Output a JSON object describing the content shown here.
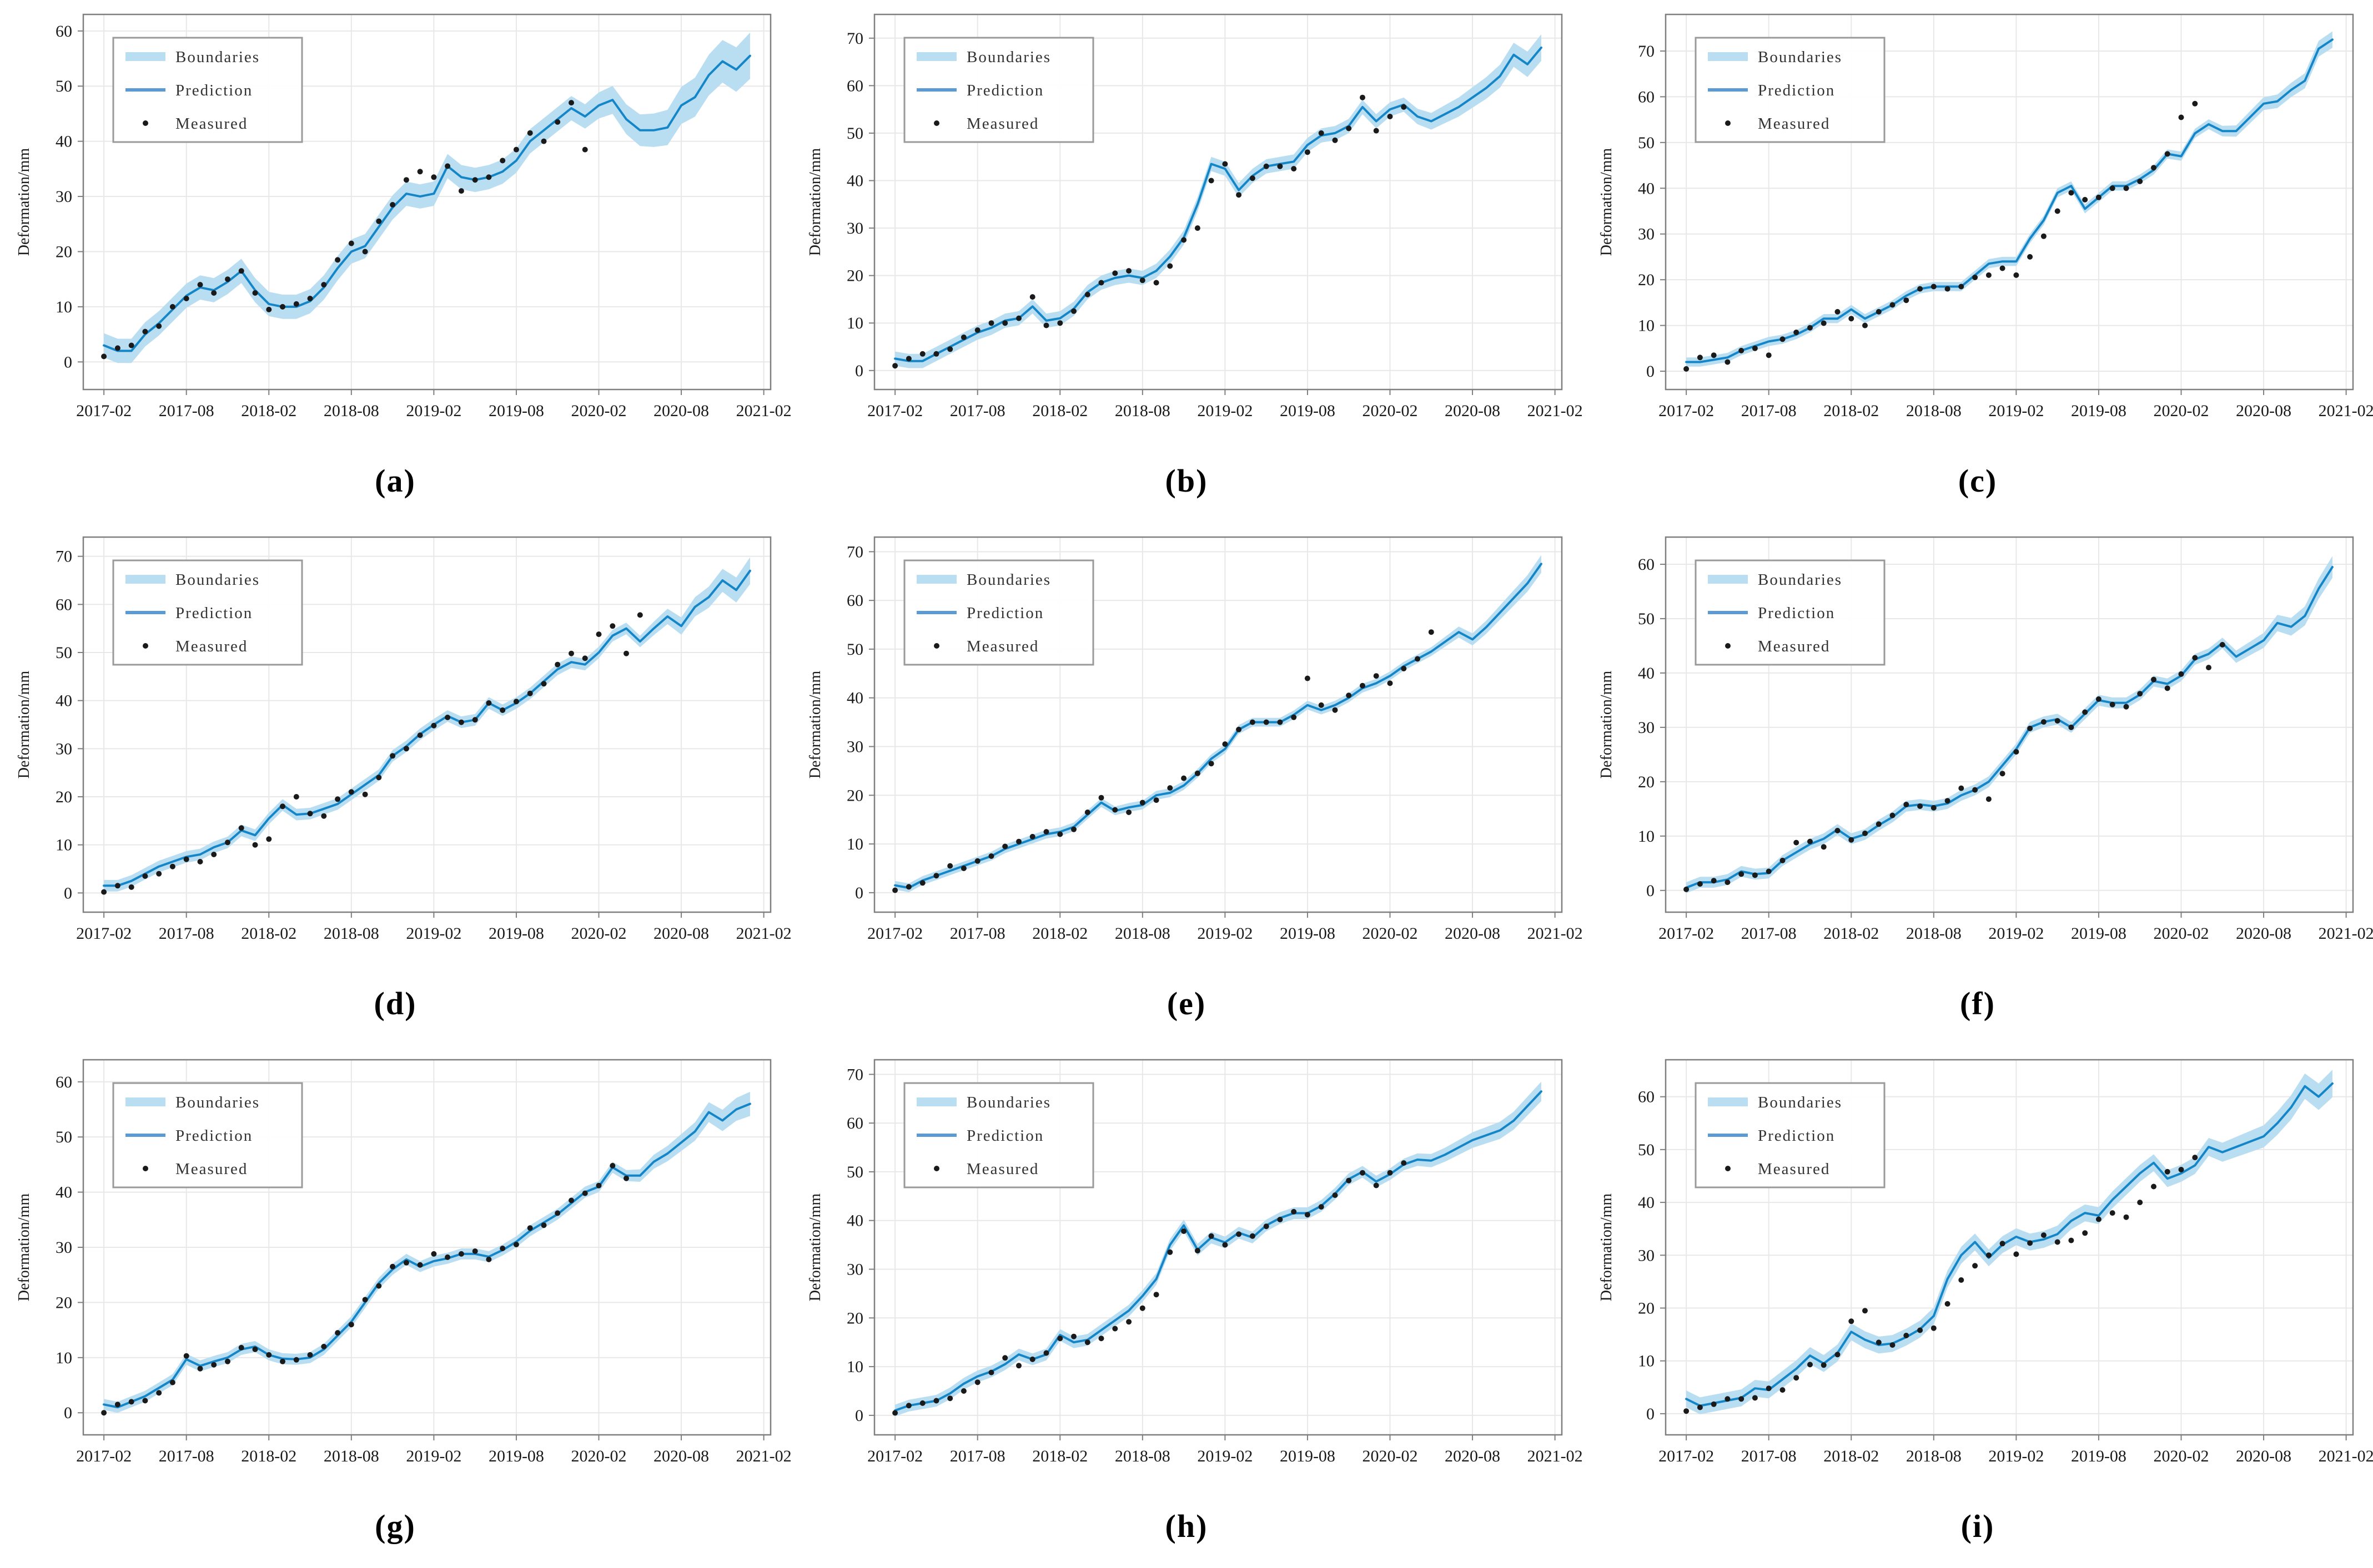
{
  "page": {
    "background": "#ffffff"
  },
  "colors": {
    "band": "#b9ddf1",
    "line": "#1486c8",
    "legend_line": "#5b9bd5",
    "measured": "#1a1a1a",
    "grid": "#e8e8e8",
    "spine": "#7f7f7f",
    "tick_text": "#1a1a1a"
  },
  "legend": {
    "items": [
      {
        "label": "Boundaries",
        "type": "band"
      },
      {
        "label": "Prediction",
        "type": "line"
      },
      {
        "label": "Measured",
        "type": "dot"
      }
    ]
  },
  "axis": {
    "ylabel": "Deformation/mm",
    "x_tick_labels": [
      "2017-02",
      "2017-08",
      "2018-02",
      "2018-08",
      "2019-02",
      "2019-08",
      "2020-02",
      "2020-08",
      "2021-02"
    ],
    "x_tick_months": [
      0,
      6,
      12,
      18,
      24,
      30,
      36,
      42,
      48
    ],
    "x_start_label": "2017-02",
    "x_end_label": "2021-02",
    "xlim_months": [
      -1.5,
      48.5
    ]
  },
  "chart_data": [
    {
      "id": "a",
      "caption": "(a)",
      "type": "line",
      "ylabel": "Deformation/mm",
      "ylim": [
        -5,
        63
      ],
      "yticks": [
        0,
        10,
        20,
        30,
        40,
        50,
        60
      ],
      "band": {
        "train": 2.2,
        "forecast": 4.2
      },
      "prediction": [
        3,
        2,
        2,
        5,
        7,
        9.5,
        12,
        13.5,
        13,
        14.5,
        16.5,
        13,
        10.5,
        10,
        10,
        11,
        13.5,
        17,
        20,
        21,
        24.5,
        28,
        30.5,
        30,
        30.5,
        35.5,
        33.5,
        33,
        33.5,
        34.5,
        36.5,
        40,
        42,
        44,
        46,
        44.5,
        46.5,
        47.5,
        44,
        42,
        42,
        42.5,
        46.5,
        48,
        52,
        54.5,
        53,
        55.5
      ],
      "measured": [
        1,
        2.5,
        3,
        5.5,
        6.5,
        10,
        11.5,
        14,
        12.5,
        15,
        16.5,
        12.5,
        9.5,
        10,
        10.5,
        11.5,
        14,
        18.5,
        21.5,
        20,
        25.5,
        28.5,
        33,
        34.5,
        33.5,
        35.5,
        31,
        33,
        33.5,
        36.5,
        38.5,
        41.5,
        40,
        43.5,
        47,
        38.5
      ]
    },
    {
      "id": "b",
      "caption": "(b)",
      "type": "line",
      "ylabel": "Deformation/mm",
      "ylim": [
        -4,
        75
      ],
      "yticks": [
        0,
        10,
        20,
        30,
        40,
        50,
        60,
        70
      ],
      "band": {
        "train": 1.5,
        "forecast": 2.8
      },
      "prediction": [
        2.5,
        2,
        2,
        3.5,
        5,
        6.5,
        8,
        9,
        10.5,
        11,
        13.5,
        10.5,
        11,
        13,
        16.5,
        18.5,
        19.5,
        20,
        19.5,
        21,
        24,
        28,
        35,
        43.5,
        42.5,
        38,
        41,
        43,
        43.5,
        44,
        47.5,
        49.5,
        50,
        51.5,
        55.5,
        52.5,
        55,
        56,
        53.5,
        52.5,
        54,
        55.5,
        57.5,
        59.5,
        62,
        66.5,
        64.5,
        68
      ],
      "measured": [
        1,
        2.5,
        3.5,
        3.5,
        4.5,
        7,
        8.5,
        10,
        10,
        11,
        15.5,
        9.5,
        10,
        12.5,
        16,
        18.5,
        20.5,
        21,
        19,
        18.5,
        22,
        27.5,
        30,
        40,
        43.5,
        37,
        40.5,
        43,
        43,
        42.5,
        46,
        50,
        48.5,
        51,
        57.5,
        50.5,
        53.5,
        55.5
      ]
    },
    {
      "id": "c",
      "caption": "(c)",
      "type": "line",
      "ylabel": "Deformation/mm",
      "ylim": [
        -4,
        78
      ],
      "yticks": [
        0,
        10,
        20,
        30,
        40,
        50,
        60,
        70
      ],
      "band": {
        "train": 1.0,
        "forecast": 1.8
      },
      "prediction": [
        2,
        2,
        2.5,
        3,
        4.5,
        5.5,
        6.5,
        7,
        8,
        9.5,
        11.5,
        11.5,
        13.5,
        11.5,
        13,
        14.5,
        16.5,
        18,
        18.5,
        18.5,
        18.5,
        21,
        23.5,
        24,
        24,
        29,
        33,
        39,
        40.5,
        35.5,
        38,
        40.5,
        40.5,
        42,
        44,
        47.5,
        47,
        52,
        54,
        52.5,
        52.5,
        55.5,
        58.5,
        59,
        61.5,
        63.5,
        70.5,
        72.5
      ],
      "measured": [
        0.5,
        3,
        3.5,
        2,
        4.5,
        5,
        3.5,
        7,
        8.5,
        9.5,
        10.5,
        13,
        11.5,
        10,
        13,
        14.5,
        15.5,
        18,
        18.5,
        18,
        18.5,
        20.5,
        21,
        22.5,
        21,
        25,
        29.5,
        35,
        39,
        37.5,
        38,
        40,
        40,
        41.5,
        44.5,
        47.5,
        55.5,
        58.5
      ]
    },
    {
      "id": "d",
      "caption": "(d)",
      "type": "line",
      "ylabel": "Deformation/mm",
      "ylim": [
        -4,
        74
      ],
      "yticks": [
        0,
        10,
        20,
        30,
        40,
        50,
        60,
        70
      ],
      "band": {
        "train": 1.2,
        "forecast": 2.8
      },
      "prediction": [
        1.5,
        1.5,
        2.5,
        4,
        5.5,
        6.5,
        7.5,
        8,
        9.5,
        10.5,
        13,
        12,
        15.5,
        18.3,
        16.3,
        16.5,
        17.5,
        18.5,
        20.5,
        22.5,
        24.5,
        28.5,
        30.5,
        33,
        35,
        36.8,
        35.5,
        36,
        39.5,
        38,
        39.5,
        41.5,
        44,
        46.5,
        48,
        47.5,
        50,
        53.5,
        55,
        52.3,
        55,
        57.5,
        55.5,
        59.5,
        61.5,
        65,
        63,
        67
      ],
      "measured": [
        0.2,
        1.5,
        1.2,
        3.5,
        4,
        5.5,
        7,
        6.5,
        8,
        10.5,
        13.5,
        10,
        11.2,
        18,
        20,
        16.5,
        16,
        19.5,
        21,
        20.5,
        24,
        28.5,
        30,
        32.8,
        34.8,
        36.5,
        35.5,
        36,
        39.5,
        38,
        39.8,
        41.5,
        43.5,
        47.5,
        49.8,
        48.8,
        53.8,
        55.5,
        49.8,
        57.8
      ]
    },
    {
      "id": "e",
      "caption": "(e)",
      "type": "line",
      "ylabel": "Deformation/mm",
      "ylim": [
        -4,
        73
      ],
      "yticks": [
        0,
        10,
        20,
        30,
        40,
        50,
        60,
        70
      ],
      "band": {
        "train": 0.9,
        "forecast": 1.8
      },
      "prediction": [
        1.5,
        1,
        2.5,
        3.5,
        4.5,
        5.5,
        6.5,
        7.5,
        9,
        10,
        11,
        12,
        12.5,
        13.5,
        16,
        18.5,
        16.8,
        17.5,
        18,
        20,
        20.5,
        22,
        24.5,
        27.5,
        29.5,
        33.5,
        35,
        35,
        35,
        36.5,
        38.5,
        37.5,
        38.5,
        40,
        42,
        43,
        44.5,
        46.5,
        48,
        49.5,
        51.5,
        53.5,
        52,
        54.5,
        57.5,
        60.5,
        63.5,
        67.5
      ],
      "measured": [
        0.5,
        1.2,
        2,
        3.5,
        5.5,
        5,
        6.5,
        7.5,
        9.5,
        10.5,
        11.5,
        12.5,
        12,
        13,
        16.5,
        19.5,
        17,
        16.5,
        18.5,
        19,
        21.5,
        23.5,
        24.5,
        26.5,
        30.5,
        33.5,
        35,
        35,
        35,
        36,
        44,
        38.5,
        37.5,
        40.5,
        42.5,
        44.5,
        43,
        46,
        48,
        53.5
      ]
    },
    {
      "id": "f",
      "caption": "(f)",
      "type": "line",
      "ylabel": "Deformation/mm",
      "ylim": [
        -4,
        65
      ],
      "yticks": [
        0,
        10,
        20,
        30,
        40,
        50,
        60
      ],
      "band": {
        "train": 1.0,
        "forecast": 2.0
      },
      "prediction": [
        0.5,
        1.5,
        1.5,
        2,
        3.5,
        3,
        3.2,
        5.5,
        7,
        8.5,
        9.5,
        11.2,
        9.5,
        10.3,
        12,
        13.5,
        15.5,
        15.8,
        15.5,
        16,
        17.5,
        18.5,
        20,
        23,
        26,
        30,
        31,
        31.5,
        30,
        32.5,
        35,
        34.5,
        34.5,
        36,
        38.5,
        38,
        39.5,
        42.5,
        43.5,
        45.5,
        43,
        44.5,
        46,
        49.2,
        48.5,
        50.5,
        55.5,
        59.5
      ],
      "measured": [
        0.2,
        1.2,
        1.8,
        1.5,
        3,
        2.8,
        3.5,
        5.5,
        8.8,
        9,
        8,
        11,
        9.3,
        10.5,
        12.2,
        13.8,
        15.8,
        15.5,
        15.2,
        16.5,
        18.8,
        18.5,
        16.8,
        21.5,
        25.5,
        29.8,
        31,
        31.2,
        30,
        32.8,
        35.2,
        34.2,
        33.8,
        36.2,
        38.8,
        37.2,
        39.8,
        42.8,
        41,
        45.2
      ]
    },
    {
      "id": "g",
      "caption": "(g)",
      "type": "line",
      "ylabel": "Deformation/mm",
      "ylim": [
        -4,
        64
      ],
      "yticks": [
        0,
        10,
        20,
        30,
        40,
        50,
        60
      ],
      "band": {
        "train": 1.0,
        "forecast": 2.2
      },
      "prediction": [
        1.5,
        1,
        2,
        3,
        4.5,
        6,
        9.7,
        8.5,
        9.3,
        10,
        11.5,
        12,
        10.5,
        9.8,
        9.7,
        10,
        11.5,
        14,
        16.5,
        20,
        23.5,
        26,
        27.8,
        26.5,
        27.5,
        28,
        28.8,
        28.8,
        28.3,
        29.5,
        31,
        33,
        34.5,
        36,
        38,
        40,
        41,
        44.5,
        43,
        43,
        45.5,
        47,
        49,
        51,
        54.5,
        53,
        55,
        56
      ],
      "measured": [
        0,
        1.5,
        2,
        2.2,
        3.6,
        5.5,
        10.3,
        8,
        8.7,
        9.3,
        11.8,
        11.5,
        10.5,
        9.3,
        9.6,
        10.5,
        12,
        14.5,
        16,
        20.5,
        23,
        26.5,
        27.2,
        26.8,
        28.8,
        28.2,
        28.8,
        29.3,
        27.8,
        29.8,
        30.5,
        33.5,
        34,
        36.2,
        38.5,
        39.8,
        41.2,
        44.8,
        42.5
      ]
    },
    {
      "id": "h",
      "caption": "(h)",
      "type": "line",
      "ylabel": "Deformation/mm",
      "ylim": [
        -4,
        73
      ],
      "yticks": [
        0,
        10,
        20,
        30,
        40,
        50,
        60,
        70
      ],
      "band": {
        "train": 1.2,
        "forecast": 2.0
      },
      "prediction": [
        1,
        2,
        2.5,
        3,
        4.5,
        6.5,
        8,
        9,
        10.5,
        12.5,
        11.5,
        12.5,
        16.5,
        15,
        15.5,
        17.5,
        19.5,
        21.5,
        24.5,
        28,
        35,
        39,
        34,
        36.5,
        35.5,
        37.5,
        36.5,
        39,
        40.5,
        41.5,
        41.5,
        43,
        45.5,
        48.5,
        50,
        48,
        49.5,
        51.5,
        52.5,
        52.3,
        53.5,
        55,
        56.5,
        57.5,
        58.5,
        60.5,
        63.5,
        66.5
      ],
      "measured": [
        0.5,
        2,
        2.5,
        3,
        3.5,
        5,
        6.8,
        8.8,
        11.8,
        10.2,
        11.5,
        12.8,
        15.8,
        16.2,
        15,
        15.8,
        17.8,
        19.2,
        22,
        24.8,
        33.5,
        37.8,
        33.8,
        36.8,
        35,
        37.2,
        36.8,
        38.8,
        40.2,
        41.8,
        41.2,
        42.8,
        45.2,
        48.2,
        49.8,
        47.2,
        49.8,
        51.8
      ]
    },
    {
      "id": "i",
      "caption": "(i)",
      "type": "line",
      "ylabel": "Deformation/mm",
      "ylim": [
        -4,
        67
      ],
      "yticks": [
        0,
        10,
        20,
        30,
        40,
        50,
        60
      ],
      "band": {
        "train": 1.6,
        "forecast": 2.6
      },
      "prediction": [
        2.8,
        1.5,
        2,
        2.5,
        3,
        4.8,
        4.5,
        6.5,
        8.5,
        11,
        9.5,
        11.5,
        15.5,
        14,
        13,
        13.3,
        14.5,
        16,
        18.5,
        25.5,
        30,
        32.5,
        29.5,
        32,
        33.5,
        32.5,
        33,
        34,
        36.5,
        38,
        37.5,
        40.5,
        43,
        45.5,
        47.5,
        44.5,
        45.5,
        47,
        50.5,
        49.5,
        50.5,
        51.5,
        52.5,
        55,
        58,
        62,
        60,
        62.5
      ],
      "measured": [
        0.5,
        1.2,
        1.8,
        2.8,
        2.8,
        3,
        4.8,
        4.5,
        6.8,
        9.3,
        9.2,
        11.2,
        17.5,
        19.5,
        13.5,
        13,
        14.8,
        15.8,
        16.2,
        20.8,
        25.3,
        28,
        30,
        32.2,
        30.2,
        32.3,
        33.8,
        32.5,
        32.8,
        34.2,
        36.8,
        38,
        37.2,
        40,
        43,
        45.8,
        46.2,
        48.5
      ]
    }
  ]
}
